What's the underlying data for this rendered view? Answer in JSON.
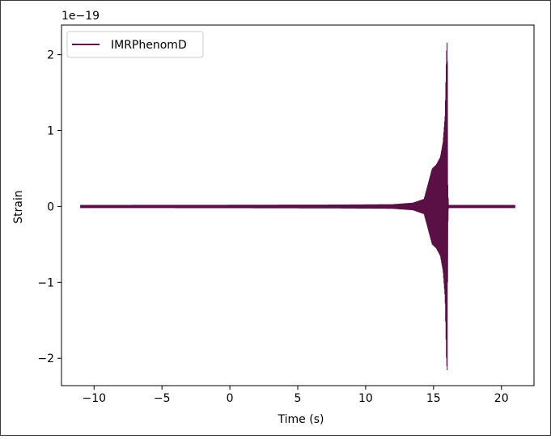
{
  "chart_data": {
    "type": "line",
    "xlabel": "Time (s)",
    "ylabel": "Strain",
    "offset_label": "1e−19",
    "xlim": [
      -12.4,
      22.4
    ],
    "ylim": [
      -2.36,
      2.39
    ],
    "x_ticks": [
      -10,
      -5,
      0,
      5,
      10,
      15,
      20
    ],
    "x_tick_labels": [
      "−10",
      "−5",
      "0",
      "5",
      "10",
      "15",
      "20"
    ],
    "y_ticks": [
      -2,
      -1,
      0,
      1,
      2
    ],
    "y_tick_labels": [
      "−2",
      "−1",
      "0",
      "1",
      "2"
    ],
    "grid": false,
    "legend_position": "top-left",
    "series": [
      {
        "name": "IMRPhenomD",
        "color": "#5a0f45",
        "x_range": [
          -11,
          21
        ],
        "merger_time": 16.0,
        "envelope": {
          "x": [
            -11,
            0,
            8,
            12,
            13.5,
            14.3,
            14.6,
            14.9,
            15.2,
            15.5,
            15.7,
            15.85,
            15.95,
            16.0,
            16.02,
            16.05,
            16.1,
            21
          ],
          "y": [
            0.02,
            0.022,
            0.025,
            0.03,
            0.05,
            0.1,
            0.3,
            0.5,
            0.55,
            0.65,
            0.85,
            1.2,
            2.0,
            2.18,
            2.13,
            0.3,
            0.02,
            0.02
          ]
        }
      }
    ]
  }
}
